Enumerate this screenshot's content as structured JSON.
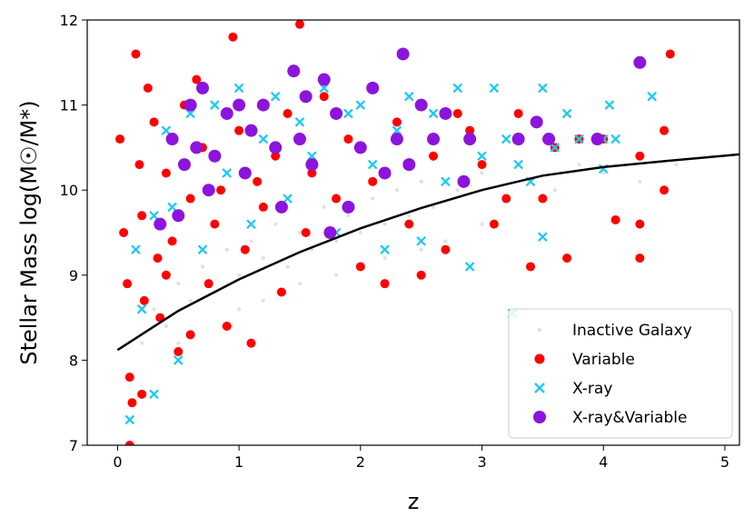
{
  "chart_data": {
    "type": "scatter",
    "title": "",
    "xlabel": "z",
    "ylabel": "Stellar Mass log(M☉/M*)",
    "xlim": [
      -0.25,
      5.12
    ],
    "ylim": [
      7,
      12
    ],
    "xticks": [
      0,
      1,
      2,
      3,
      4,
      5
    ],
    "yticks": [
      7,
      8,
      9,
      10,
      11,
      12
    ],
    "grid": false,
    "legend_position": "bottom-right",
    "series": [
      {
        "name": "Inactive Galaxy",
        "marker": "dot",
        "color": "#cccccc",
        "points": [
          [
            0.2,
            8.2
          ],
          [
            0.3,
            8.6
          ],
          [
            0.4,
            8.4
          ],
          [
            0.5,
            8.9
          ],
          [
            0.6,
            8.7
          ],
          [
            0.7,
            9.1
          ],
          [
            0.8,
            8.8
          ],
          [
            0.9,
            9.3
          ],
          [
            1.0,
            9.0
          ],
          [
            1.1,
            9.4
          ],
          [
            1.2,
            9.2
          ],
          [
            1.3,
            9.6
          ],
          [
            1.4,
            9.1
          ],
          [
            1.5,
            9.5
          ],
          [
            1.6,
            9.3
          ],
          [
            1.7,
            9.8
          ],
          [
            1.8,
            9.4
          ],
          [
            1.9,
            9.7
          ],
          [
            2.0,
            9.5
          ],
          [
            2.1,
            9.9
          ],
          [
            2.2,
            9.6
          ],
          [
            2.3,
            10.0
          ],
          [
            2.4,
            9.7
          ],
          [
            2.5,
            10.1
          ],
          [
            2.6,
            9.8
          ],
          [
            2.8,
            10.0
          ],
          [
            3.0,
            10.2
          ],
          [
            3.2,
            9.9
          ],
          [
            3.4,
            10.1
          ],
          [
            3.6,
            10.0
          ],
          [
            3.8,
            10.3
          ],
          [
            4.0,
            10.2
          ],
          [
            4.3,
            10.1
          ],
          [
            4.6,
            10.3
          ],
          [
            4.9,
            10.4
          ],
          [
            1.0,
            8.6
          ],
          [
            1.5,
            8.9
          ],
          [
            2.0,
            9.1
          ],
          [
            2.5,
            9.3
          ],
          [
            3.0,
            9.6
          ],
          [
            0.5,
            8.2
          ],
          [
            1.2,
            8.7
          ],
          [
            1.8,
            9.0
          ],
          [
            2.2,
            9.2
          ],
          [
            2.7,
            9.4
          ]
        ]
      },
      {
        "name": "Variable",
        "marker": "circle",
        "color": "#ff0000",
        "points": [
          [
            0.02,
            10.6
          ],
          [
            0.05,
            9.5
          ],
          [
            0.08,
            8.9
          ],
          [
            0.1,
            7.8
          ],
          [
            0.12,
            7.5
          ],
          [
            0.15,
            11.6
          ],
          [
            0.18,
            10.3
          ],
          [
            0.2,
            9.7
          ],
          [
            0.22,
            8.7
          ],
          [
            0.25,
            11.2
          ],
          [
            0.3,
            10.8
          ],
          [
            0.33,
            9.2
          ],
          [
            0.35,
            8.5
          ],
          [
            0.4,
            10.2
          ],
          [
            0.45,
            9.4
          ],
          [
            0.5,
            8.1
          ],
          [
            0.55,
            11.0
          ],
          [
            0.6,
            9.9
          ],
          [
            0.65,
            11.3
          ],
          [
            0.7,
            10.5
          ],
          [
            0.75,
            8.9
          ],
          [
            0.8,
            9.6
          ],
          [
            0.85,
            10.0
          ],
          [
            0.9,
            8.4
          ],
          [
            0.95,
            11.8
          ],
          [
            1.0,
            10.7
          ],
          [
            1.05,
            9.3
          ],
          [
            1.1,
            8.2
          ],
          [
            1.15,
            10.1
          ],
          [
            1.2,
            9.8
          ],
          [
            1.3,
            10.4
          ],
          [
            1.35,
            8.8
          ],
          [
            1.4,
            10.9
          ],
          [
            1.5,
            11.95
          ],
          [
            1.55,
            9.5
          ],
          [
            1.6,
            10.2
          ],
          [
            1.7,
            11.1
          ],
          [
            1.8,
            9.9
          ],
          [
            1.9,
            10.6
          ],
          [
            2.0,
            9.1
          ],
          [
            2.1,
            10.1
          ],
          [
            2.2,
            8.9
          ],
          [
            2.3,
            10.8
          ],
          [
            2.4,
            9.6
          ],
          [
            2.5,
            9.0
          ],
          [
            2.6,
            10.4
          ],
          [
            2.7,
            9.3
          ],
          [
            2.8,
            10.9
          ],
          [
            2.9,
            10.7
          ],
          [
            3.0,
            10.3
          ],
          [
            3.1,
            9.6
          ],
          [
            3.2,
            9.9
          ],
          [
            3.3,
            10.9
          ],
          [
            3.4,
            9.1
          ],
          [
            3.5,
            9.9
          ],
          [
            3.6,
            10.5
          ],
          [
            3.7,
            9.2
          ],
          [
            3.8,
            10.6
          ],
          [
            4.0,
            10.6
          ],
          [
            4.1,
            9.65
          ],
          [
            4.3,
            9.6
          ],
          [
            4.3,
            9.2
          ],
          [
            4.5,
            10.7
          ],
          [
            4.5,
            10.0
          ],
          [
            4.55,
            11.6
          ],
          [
            4.3,
            10.4
          ],
          [
            0.1,
            7.0
          ],
          [
            0.4,
            9.0
          ],
          [
            0.6,
            8.3
          ],
          [
            0.2,
            7.6
          ]
        ]
      },
      {
        "name": "X-ray",
        "marker": "x",
        "color": "#1ec8f5",
        "points": [
          [
            0.1,
            7.3
          ],
          [
            0.2,
            8.6
          ],
          [
            0.3,
            9.7
          ],
          [
            0.4,
            10.7
          ],
          [
            0.5,
            8.0
          ],
          [
            0.6,
            10.9
          ],
          [
            0.7,
            9.3
          ],
          [
            0.8,
            11.0
          ],
          [
            0.9,
            10.2
          ],
          [
            1.0,
            11.2
          ],
          [
            1.1,
            9.6
          ],
          [
            1.2,
            10.6
          ],
          [
            1.3,
            11.1
          ],
          [
            1.4,
            9.9
          ],
          [
            1.5,
            10.8
          ],
          [
            1.6,
            10.4
          ],
          [
            1.7,
            11.2
          ],
          [
            1.8,
            9.5
          ],
          [
            1.9,
            10.9
          ],
          [
            2.0,
            11.0
          ],
          [
            2.1,
            10.3
          ],
          [
            2.2,
            9.3
          ],
          [
            2.3,
            10.7
          ],
          [
            2.4,
            11.1
          ],
          [
            2.5,
            9.4
          ],
          [
            2.6,
            10.9
          ],
          [
            2.7,
            10.1
          ],
          [
            2.8,
            11.2
          ],
          [
            2.9,
            9.1
          ],
          [
            3.0,
            10.4
          ],
          [
            3.1,
            11.2
          ],
          [
            3.2,
            10.6
          ],
          [
            3.25,
            8.55
          ],
          [
            3.3,
            10.3
          ],
          [
            3.4,
            10.1
          ],
          [
            3.5,
            11.2
          ],
          [
            3.5,
            9.45
          ],
          [
            3.6,
            10.5
          ],
          [
            3.7,
            10.9
          ],
          [
            3.8,
            10.6
          ],
          [
            4.0,
            10.6
          ],
          [
            4.05,
            11.0
          ],
          [
            4.0,
            10.25
          ],
          [
            4.1,
            10.6
          ],
          [
            4.4,
            11.1
          ],
          [
            0.3,
            7.6
          ],
          [
            0.45,
            9.8
          ],
          [
            0.15,
            9.3
          ]
        ]
      },
      {
        "name": "X-ray&Variable",
        "marker": "circle",
        "color": "#8c14dc",
        "points": [
          [
            0.35,
            9.6
          ],
          [
            0.45,
            10.6
          ],
          [
            0.5,
            9.7
          ],
          [
            0.55,
            10.3
          ],
          [
            0.6,
            11.0
          ],
          [
            0.65,
            10.5
          ],
          [
            0.7,
            11.2
          ],
          [
            0.75,
            10.0
          ],
          [
            0.8,
            10.4
          ],
          [
            0.9,
            10.9
          ],
          [
            1.0,
            11.0
          ],
          [
            1.05,
            10.2
          ],
          [
            1.1,
            10.7
          ],
          [
            1.2,
            11.0
          ],
          [
            1.3,
            10.5
          ],
          [
            1.35,
            9.8
          ],
          [
            1.45,
            11.4
          ],
          [
            1.5,
            10.6
          ],
          [
            1.55,
            11.1
          ],
          [
            1.6,
            10.3
          ],
          [
            1.7,
            11.3
          ],
          [
            1.75,
            9.5
          ],
          [
            1.8,
            10.9
          ],
          [
            1.9,
            9.8
          ],
          [
            2.0,
            10.5
          ],
          [
            2.1,
            11.2
          ],
          [
            2.2,
            10.2
          ],
          [
            2.3,
            10.6
          ],
          [
            2.35,
            11.6
          ],
          [
            2.4,
            10.3
          ],
          [
            2.5,
            11.0
          ],
          [
            2.6,
            10.6
          ],
          [
            2.7,
            10.9
          ],
          [
            2.85,
            10.1
          ],
          [
            2.9,
            10.6
          ],
          [
            3.3,
            10.6
          ],
          [
            3.45,
            10.8
          ],
          [
            3.55,
            10.6
          ],
          [
            3.95,
            10.6
          ],
          [
            4.3,
            11.5
          ]
        ]
      }
    ],
    "fit_line": {
      "name": "trend",
      "color": "#000000",
      "x": [
        0.0,
        0.5,
        1.0,
        1.5,
        2.0,
        2.5,
        3.0,
        3.5,
        4.0,
        4.5,
        5.12
      ],
      "y": [
        8.12,
        8.58,
        8.95,
        9.27,
        9.55,
        9.79,
        10.0,
        10.17,
        10.27,
        10.34,
        10.42
      ]
    }
  }
}
